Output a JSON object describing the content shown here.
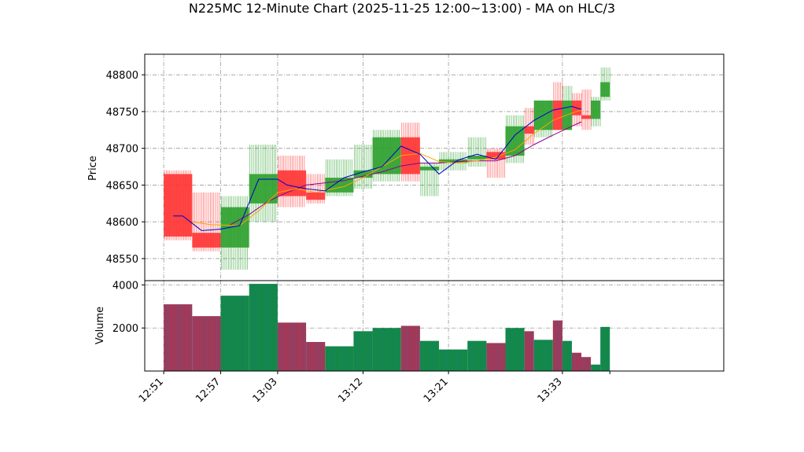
{
  "chart_data": {
    "type": "candlestick",
    "title": "N225MC 12-Minute Chart (2025-11-25 12:00~13:00) - MA on HLC/3",
    "price_panel": {
      "ylabel": "Price",
      "ylim": [
        48520,
        48828
      ],
      "yticks": [
        48550,
        48600,
        48650,
        48700,
        48750,
        48800
      ],
      "grid": true
    },
    "volume_panel": {
      "ylabel": "Volume",
      "ylim": [
        0,
        4200
      ],
      "yticks": [
        2000,
        4000
      ],
      "grid": true
    },
    "x_time_range": [
      "12:49",
      "13:50"
    ],
    "xticks": [
      "12:51",
      "12:57",
      "13:03",
      "13:12",
      "13:21",
      "13:33"
    ],
    "colors": {
      "up": "#2ca02c",
      "down": "#ff3333",
      "ma_fast": "#0000cc",
      "ma_mid": "#ffa500",
      "ma_slow": "#8b008b",
      "grid": "#999999",
      "vol_edge": "#1f77b4"
    },
    "candles": [
      {
        "t0": "12:51",
        "t1": "12:54",
        "open": 48665,
        "high": 48670,
        "low": 48575,
        "close": 48580,
        "volume": 3100
      },
      {
        "t0": "12:54",
        "t1": "12:57",
        "open": 48585,
        "high": 48640,
        "low": 48560,
        "close": 48565,
        "volume": 2550
      },
      {
        "t0": "12:57",
        "t1": "13:00",
        "open": 48565,
        "high": 48635,
        "low": 48535,
        "close": 48620,
        "volume": 3500
      },
      {
        "t0": "13:00",
        "t1": "13:03",
        "open": 48625,
        "high": 48705,
        "low": 48600,
        "close": 48665,
        "volume": 4050
      },
      {
        "t0": "13:03",
        "t1": "13:06",
        "open": 48670,
        "high": 48690,
        "low": 48620,
        "close": 48635,
        "volume": 2250
      },
      {
        "t0": "13:06",
        "t1": "13:08",
        "open": 48640,
        "high": 48665,
        "low": 48625,
        "close": 48630,
        "volume": 1350
      },
      {
        "t0": "13:08",
        "t1": "13:11",
        "open": 48640,
        "high": 48685,
        "low": 48635,
        "close": 48660,
        "volume": 1150
      },
      {
        "t0": "13:11",
        "t1": "13:13",
        "open": 48660,
        "high": 48705,
        "low": 48645,
        "close": 48670,
        "volume": 1850
      },
      {
        "t0": "13:13",
        "t1": "13:16",
        "open": 48665,
        "high": 48725,
        "low": 48655,
        "close": 48715,
        "volume": 2000
      },
      {
        "t0": "13:16",
        "t1": "13:18",
        "open": 48715,
        "high": 48735,
        "low": 48655,
        "close": 48665,
        "volume": 2100
      },
      {
        "t0": "13:18",
        "t1": "13:20",
        "open": 48670,
        "high": 48680,
        "low": 48635,
        "close": 48675,
        "volume": 1400
      },
      {
        "t0": "13:20",
        "t1": "13:23",
        "open": 48680,
        "high": 48695,
        "low": 48670,
        "close": 48685,
        "volume": 1000
      },
      {
        "t0": "13:23",
        "t1": "13:25",
        "open": 48685,
        "high": 48715,
        "low": 48675,
        "close": 48690,
        "volume": 1400
      },
      {
        "t0": "13:25",
        "t1": "13:27",
        "open": 48695,
        "high": 48700,
        "low": 48660,
        "close": 48685,
        "volume": 1300
      },
      {
        "t0": "13:27",
        "t1": "13:29",
        "open": 48690,
        "high": 48745,
        "low": 48680,
        "close": 48730,
        "volume": 2000
      },
      {
        "t0": "13:29",
        "t1": "13:30",
        "open": 48730,
        "high": 48755,
        "low": 48705,
        "close": 48720,
        "volume": 1850
      },
      {
        "t0": "13:30",
        "t1": "13:32",
        "open": 48725,
        "high": 48765,
        "low": 48715,
        "close": 48765,
        "volume": 1450
      },
      {
        "t0": "13:32",
        "t1": "13:33",
        "open": 48765,
        "high": 48790,
        "low": 48725,
        "close": 48725,
        "volume": 2350
      },
      {
        "t0": "13:33",
        "t1": "13:34",
        "open": 48725,
        "high": 48785,
        "low": 48725,
        "close": 48765,
        "volume": 1400
      },
      {
        "t0": "13:34",
        "t1": "13:35",
        "open": 48765,
        "high": 48775,
        "low": 48730,
        "close": 48745,
        "volume": 850
      },
      {
        "t0": "13:35",
        "t1": "13:36",
        "open": 48745,
        "high": 48780,
        "low": 48725,
        "close": 48740,
        "volume": 650
      },
      {
        "t0": "13:36",
        "t1": "13:37",
        "open": 48740,
        "high": 48770,
        "low": 48730,
        "close": 48765,
        "volume": 300
      },
      {
        "t0": "13:37",
        "t1": "13:38",
        "open": 48770,
        "high": 48810,
        "low": 48765,
        "close": 48790,
        "volume": 2050
      }
    ],
    "ma_fast": {
      "x": [
        "12:52",
        "12:53",
        "12:55",
        "12:57",
        "12:59",
        "13:01",
        "13:03",
        "13:04",
        "13:06",
        "13:08",
        "13:10",
        "13:12",
        "13:14",
        "13:16",
        "13:18",
        "13:20",
        "13:22",
        "13:24",
        "13:26",
        "13:28",
        "13:30",
        "13:32",
        "13:34",
        "13:35"
      ],
      "y": [
        48608,
        48608,
        48588,
        48590,
        48595,
        48658,
        48658,
        48650,
        48645,
        48642,
        48660,
        48668,
        48675,
        48703,
        48692,
        48665,
        48684,
        48692,
        48685,
        48718,
        48738,
        48752,
        48757,
        48753
      ]
    },
    "ma_mid": {
      "x": [
        "12:54",
        "12:56",
        "12:59",
        "13:01",
        "13:03",
        "13:05",
        "13:07",
        "13:10",
        "13:12",
        "13:14",
        "13:16",
        "13:18",
        "13:20",
        "13:22",
        "13:24",
        "13:26",
        "13:28",
        "13:30",
        "13:32",
        "13:34",
        "13:35"
      ],
      "y": [
        48600,
        48596,
        48595,
        48615,
        48640,
        48645,
        48640,
        48648,
        48660,
        48675,
        48690,
        48693,
        48682,
        48680,
        48683,
        48688,
        48698,
        48720,
        48738,
        48748,
        48752
      ]
    },
    "ma_slow": {
      "x": [
        "12:58",
        "13:00",
        "13:02",
        "13:04",
        "13:06",
        "13:08",
        "13:10",
        "13:12",
        "13:14",
        "13:16",
        "13:18",
        "13:20",
        "13:22",
        "13:24",
        "13:26",
        "13:28",
        "13:30",
        "13:32",
        "13:34",
        "13:35"
      ],
      "y": [
        48596,
        48610,
        48628,
        48640,
        48650,
        48653,
        48656,
        48662,
        48668,
        48676,
        48680,
        48680,
        48682,
        48683,
        48683,
        48690,
        48705,
        48718,
        48730,
        48736
      ]
    }
  }
}
